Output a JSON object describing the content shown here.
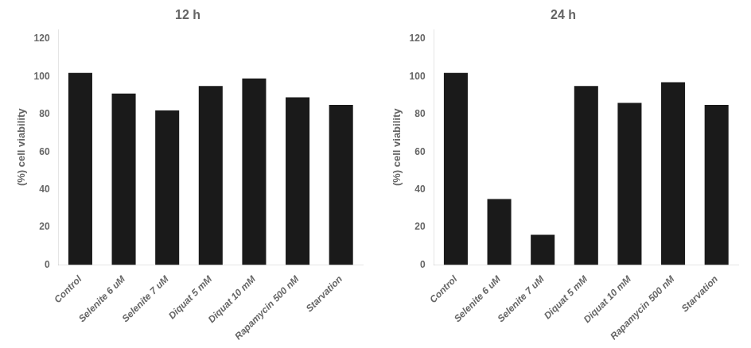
{
  "chart_data": [
    {
      "type": "bar",
      "title": "12 h",
      "categories": [
        "Control",
        "Selenite 6 uM",
        "Selenite 7 uM",
        "Diquat 5 mM",
        "Diquat 10 mM",
        "Rapamycin 500 nM",
        "Starvation"
      ],
      "values": [
        102,
        91,
        82,
        95,
        99,
        89,
        85
      ],
      "color": "#1a1a1a",
      "ylabel": "(%) cell viability",
      "ylim": [
        0,
        125
      ],
      "yticks": [
        0,
        20,
        40,
        60,
        80,
        100,
        120
      ],
      "grid": false
    },
    {
      "type": "bar",
      "title": "24 h",
      "categories": [
        "Control",
        "Selenite 6 uM",
        "Selenite 7 uM",
        "Diquat 5 mM",
        "Diquat 10 mM",
        "Rapamycin 500 nM",
        "Starvation"
      ],
      "values": [
        102,
        35,
        16,
        95,
        86,
        97,
        85
      ],
      "color": "#1a1a1a",
      "ylabel": "(%) cell viability",
      "ylim": [
        0,
        125
      ],
      "yticks": [
        0,
        20,
        40,
        60,
        80,
        100,
        120
      ],
      "grid": false
    }
  ]
}
